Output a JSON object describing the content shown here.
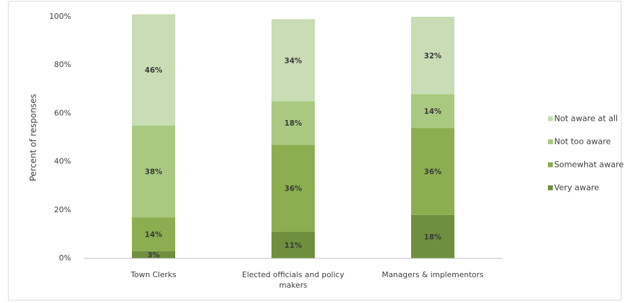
{
  "chart_data": {
    "type": "stacked_bar",
    "ylabel": "Percent of responses",
    "categories": [
      "Town Clerks",
      "Elected officials and policy makers",
      "Managers & implementors"
    ],
    "series": [
      {
        "name": "Very aware",
        "color": "#6f8f3e",
        "values": [
          3,
          11,
          18
        ],
        "value_labels": [
          "3%",
          "11%",
          "18%"
        ]
      },
      {
        "name": "Somewhat aware",
        "color": "#8cae50",
        "values": [
          14,
          36,
          36
        ],
        "value_labels": [
          "14%",
          "36%",
          "36%"
        ]
      },
      {
        "name": "Not too aware",
        "color": "#a9c981",
        "values": [
          38,
          18,
          14
        ],
        "value_labels": [
          "38%",
          "18%",
          "14%"
        ]
      },
      {
        "name": "Not aware at all",
        "color": "#c9dcb3",
        "values": [
          46,
          34,
          32
        ],
        "value_labels": [
          "46%",
          "34%",
          "32%"
        ]
      }
    ],
    "ylim": [
      0,
      100
    ],
    "yticks": [
      {
        "value": 0,
        "label": "0%"
      },
      {
        "value": 20,
        "label": "20%"
      },
      {
        "value": 40,
        "label": "40%"
      },
      {
        "value": 60,
        "label": "60%"
      },
      {
        "value": 80,
        "label": "80%"
      },
      {
        "value": 100,
        "label": "100%"
      }
    ],
    "legend": "right",
    "grid": false
  }
}
